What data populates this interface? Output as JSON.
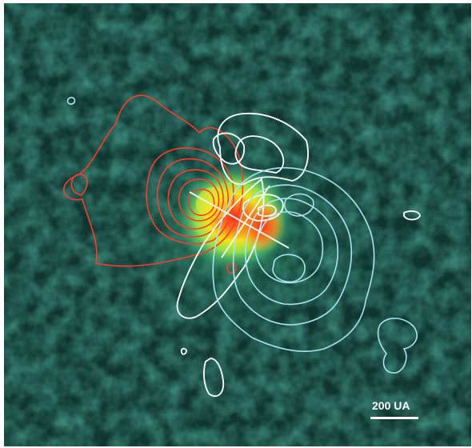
{
  "figure": {
    "scale_bar_label": "200 UA"
  },
  "colors": {
    "background_dark": "#0a2020",
    "background_teal": "#1e5a4c",
    "emission_core": "#ff2a1a",
    "emission_mid": "#f2e418",
    "emission_outer": "#4fd06a",
    "contour_red": "#ff3b2b",
    "contour_white": "#ffffff",
    "contour_cyan": "#a8e4ee",
    "scale_bar": "#ffffff"
  }
}
